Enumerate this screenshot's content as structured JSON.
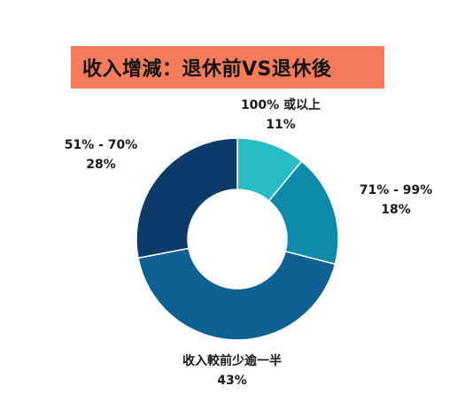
{
  "title": "收入增減：退休前VS退休後",
  "colors": {
    "title_background": "#f47c5c"
  },
  "chart_data": {
    "type": "pie",
    "donut": true,
    "title": "收入增減：退休前VS退休後",
    "slices": [
      {
        "label": "100% 或以上",
        "value": 11,
        "value_label": "11%",
        "color": "#28bcc4"
      },
      {
        "label": "71% - 99%",
        "value": 18,
        "value_label": "18%",
        "color": "#0d8aaa"
      },
      {
        "label": "收入較前少逾一半",
        "value": 43,
        "value_label": "43%",
        "color": "#0e5f92"
      },
      {
        "label": "51% - 70%",
        "value": 28,
        "value_label": "28%",
        "color": "#0c3a69"
      }
    ],
    "legend": "none"
  }
}
